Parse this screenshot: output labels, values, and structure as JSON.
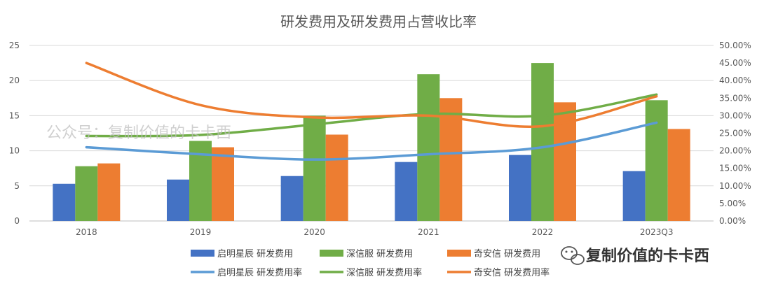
{
  "chart_data": {
    "type": "bar",
    "title": "研发费用及研发费用占营收比率",
    "categories": [
      "2018",
      "2019",
      "2020",
      "2021",
      "2022",
      "2023Q3"
    ],
    "y_left": {
      "ylim": [
        0,
        25
      ],
      "ticks": [
        0,
        5,
        10,
        15,
        20,
        25
      ]
    },
    "y_right": {
      "ylim": [
        0,
        0.5
      ],
      "ticks": [
        "0.00%",
        "5.00%",
        "10.00%",
        "15.00%",
        "20.00%",
        "25.00%",
        "30.00%",
        "35.00%",
        "40.00%",
        "45.00%",
        "50.00%"
      ]
    },
    "grid": true,
    "legend_position": "bottom",
    "bar_series": [
      {
        "name": "启明星辰 研发费用",
        "color": "#4472C4",
        "values": [
          5.3,
          5.9,
          6.4,
          8.4,
          9.4,
          7.1
        ]
      },
      {
        "name": "深信服 研发费用",
        "color": "#70AD47",
        "values": [
          7.8,
          11.4,
          15.0,
          20.9,
          22.5,
          17.2
        ]
      },
      {
        "name": "奇安信 研发费用",
        "color": "#ED7D31",
        "values": [
          8.2,
          10.5,
          12.3,
          17.5,
          16.9,
          13.1
        ]
      }
    ],
    "line_series": [
      {
        "name": "启明星辰 研发费用率",
        "color": "#5B9BD5",
        "values": [
          0.21,
          0.19,
          0.175,
          0.19,
          0.21,
          0.28
        ]
      },
      {
        "name": "深信服 研发费用率",
        "color": "#70AD47",
        "values": [
          0.242,
          0.245,
          0.275,
          0.305,
          0.3,
          0.36
        ]
      },
      {
        "name": "奇安信 研发费用率",
        "color": "#ED7D31",
        "values": [
          0.45,
          0.33,
          0.295,
          0.3,
          0.27,
          0.355
        ]
      }
    ]
  },
  "watermark": "公众号：复制价值的卡卡西",
  "brand": {
    "text": "复制价值的卡卡西",
    "icon": "wechat-icon"
  }
}
